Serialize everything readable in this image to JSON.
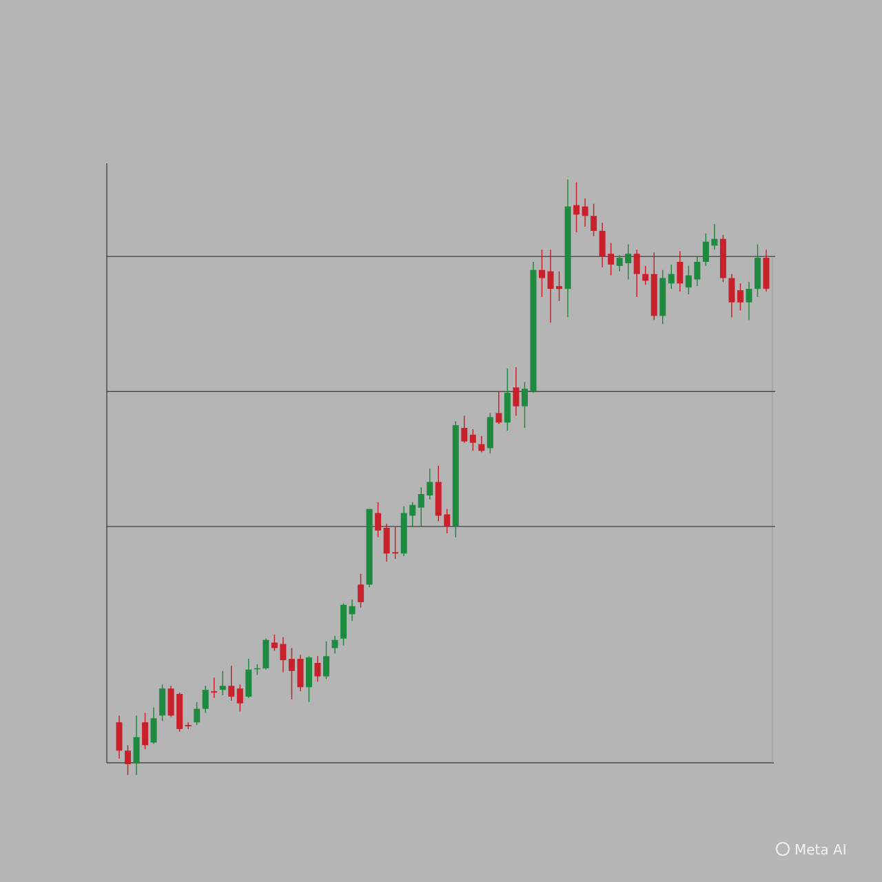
{
  "chart_data": {
    "type": "candlestick",
    "open": [
      5.5,
      3.4,
      2.5,
      5.5,
      4.0,
      6.0,
      8.0,
      7.6,
      5.3,
      5.5,
      6.5,
      7.8,
      7.9,
      8.2,
      8.0,
      7.4,
      9.5,
      9.5,
      11.4,
      11.3,
      10.2,
      10.2,
      8.1,
      9.9,
      8.9,
      11.0,
      11.7,
      13.5,
      15.7,
      15.7,
      21.0,
      19.9,
      18.1,
      18.0,
      20.8,
      21.4,
      22.3,
      23.3,
      20.9,
      20.0,
      27.3,
      26.8,
      26.1,
      25.8,
      28.4,
      27.7,
      30.3,
      28.9,
      30.0,
      39.0,
      38.9,
      37.8,
      37.6,
      43.8,
      43.7,
      43.0,
      41.9,
      40.2,
      39.3,
      39.5,
      40.2,
      38.7,
      38.7,
      35.6,
      38.0,
      39.6,
      37.7,
      38.3,
      39.6,
      40.8,
      41.3,
      38.4,
      37.5,
      36.6,
      37.6,
      39.9
    ],
    "high": [
      6.0,
      3.8,
      6.0,
      6.2,
      6.6,
      8.3,
      8.2,
      7.7,
      5.5,
      7.0,
      8.2,
      8.8,
      9.3,
      9.7,
      8.3,
      10.2,
      9.8,
      11.7,
      12.0,
      11.8,
      11.0,
      10.5,
      10.4,
      10.4,
      11.5,
      11.9,
      14.3,
      14.6,
      16.5,
      21.3,
      21.8,
      20.2,
      20.0,
      21.5,
      21.8,
      22.9,
      24.3,
      24.5,
      21.3,
      27.8,
      28.2,
      27.2,
      26.7,
      28.4,
      30.0,
      31.7,
      31.8,
      30.7,
      39.6,
      40.5,
      40.5,
      38.9,
      45.7,
      45.5,
      44.3,
      43.9,
      42.5,
      41.0,
      40.1,
      40.9,
      40.5,
      39.3,
      40.3,
      39.0,
      39.4,
      40.4,
      39.3,
      40.0,
      41.7,
      42.4,
      41.6,
      38.7,
      38.0,
      38.1,
      40.9,
      40.5
    ],
    "low": [
      2.8,
      1.6,
      1.6,
      3.5,
      3.9,
      5.6,
      5.9,
      4.8,
      5.0,
      5.3,
      6.2,
      7.3,
      7.5,
      7.1,
      6.3,
      7.3,
      9.0,
      9.4,
      10.8,
      9.2,
      7.2,
      7.8,
      7.0,
      8.5,
      8.7,
      10.6,
      11.2,
      13.0,
      14.0,
      15.5,
      19.2,
      17.4,
      17.6,
      17.8,
      20.0,
      20.0,
      22.0,
      20.4,
      19.5,
      19.2,
      26.2,
      25.6,
      25.5,
      25.4,
      27.6,
      27.1,
      28.2,
      27.3,
      29.9,
      37.0,
      35.1,
      36.7,
      35.5,
      41.8,
      42.2,
      41.5,
      39.2,
      38.6,
      38.9,
      38.3,
      37.0,
      37.9,
      35.3,
      35.0,
      37.6,
      37.4,
      37.2,
      37.8,
      39.3,
      40.5,
      38.1,
      35.5,
      36.0,
      35.3,
      37.0,
      37.4
    ],
    "close": [
      3.4,
      2.4,
      4.4,
      3.8,
      5.8,
      8.0,
      6.0,
      5.0,
      5.2,
      6.5,
      7.9,
      7.7,
      8.2,
      7.4,
      6.9,
      9.4,
      9.5,
      11.6,
      11.0,
      10.1,
      9.3,
      8.1,
      10.3,
      8.9,
      10.4,
      11.6,
      14.2,
      14.1,
      14.4,
      21.3,
      19.7,
      18.0,
      18.0,
      21.0,
      21.6,
      22.4,
      23.3,
      20.8,
      20.0,
      27.5,
      26.3,
      26.2,
      25.6,
      28.1,
      27.7,
      29.9,
      28.9,
      30.2,
      39.0,
      38.4,
      37.6,
      37.6,
      43.7,
      43.1,
      43.0,
      41.9,
      40.0,
      39.4,
      39.9,
      40.2,
      38.7,
      38.2,
      35.6,
      38.4,
      38.7,
      38.0,
      38.6,
      39.6,
      41.1,
      41.3,
      38.4,
      36.6,
      36.6,
      37.6,
      39.9,
      37.6
    ],
    "up_color": "#1d8a3f",
    "down_color": "#c8212b",
    "ylim": [
      2.5,
      47
    ],
    "yticks": [
      20,
      30,
      40
    ],
    "grid": true
  },
  "watermark": "Meta AI"
}
